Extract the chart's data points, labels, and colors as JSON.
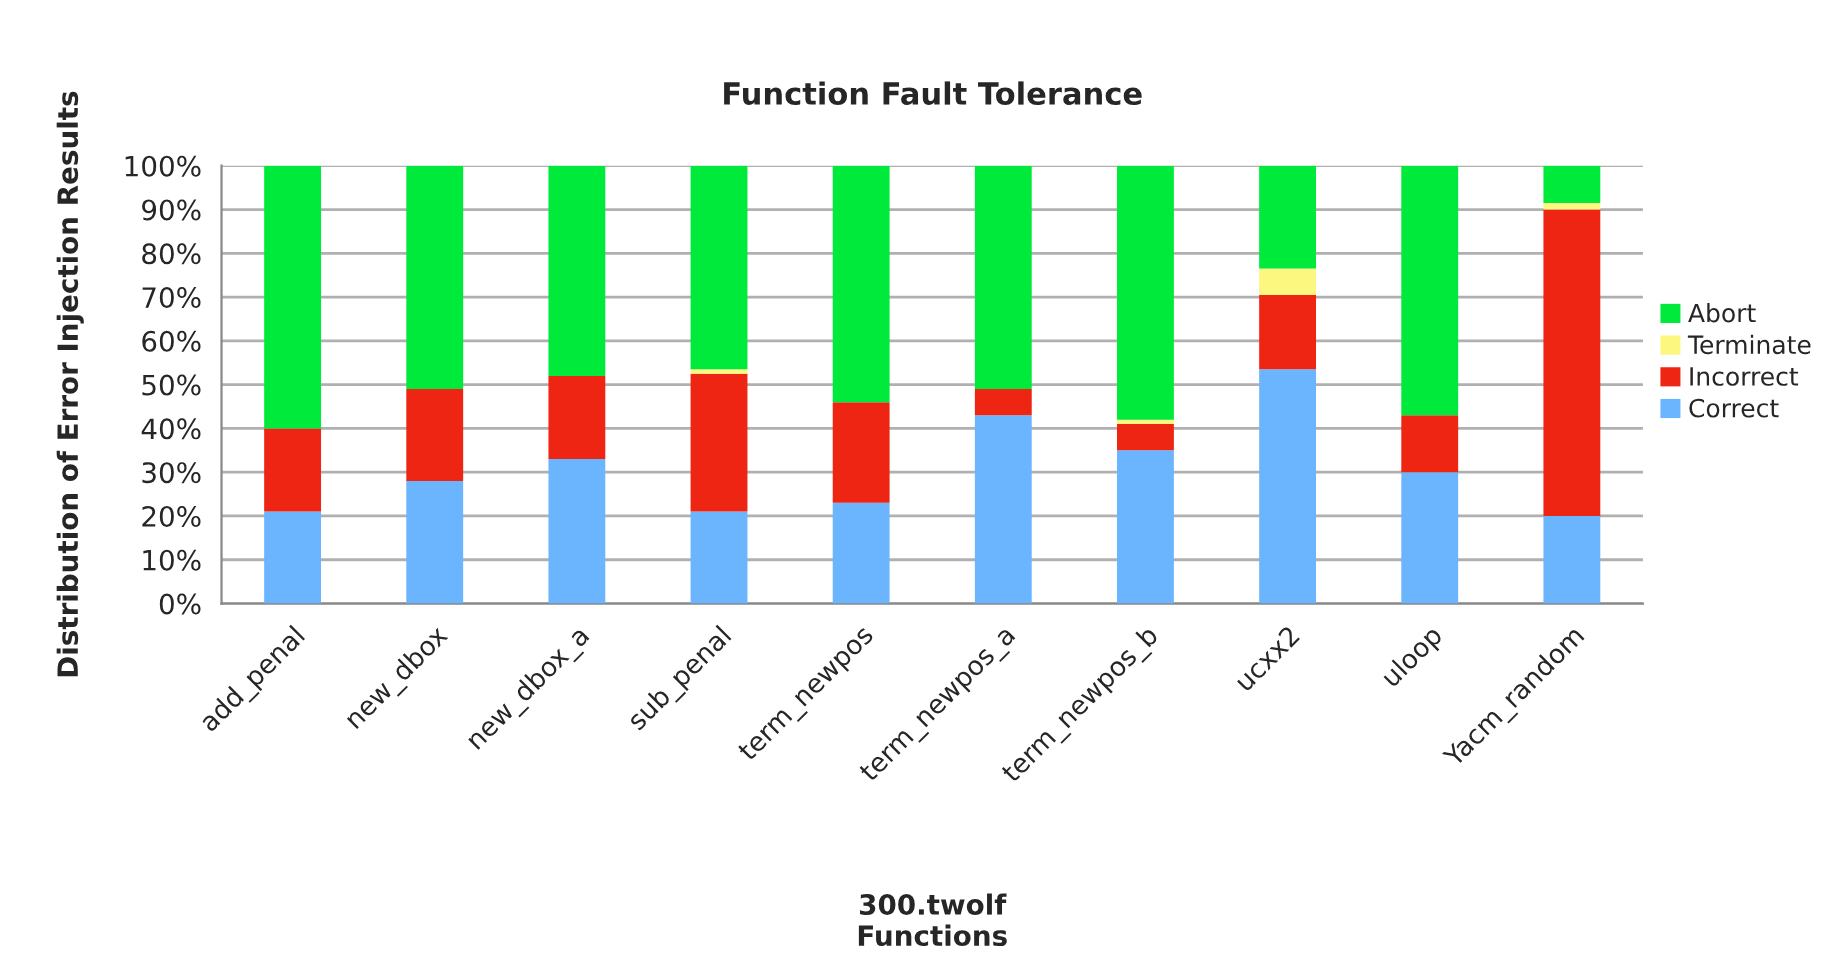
{
  "chart_data": {
    "type": "bar",
    "title": "Function Fault Tolerance",
    "xlabel": "300.twolf\nFunctions",
    "ylabel": "Distribution of Error Injection Results",
    "categories": [
      "add_penal",
      "new_dbox",
      "new_dbox_a",
      "sub_penal",
      "term_newpos",
      "term_newpos_a",
      "term_newpos_b",
      "ucxx2",
      "uloop",
      "Yacm_random"
    ],
    "stacked": true,
    "series": [
      {
        "name": "Correct",
        "color": "#6bb5ff",
        "values": [
          21,
          28,
          33,
          21,
          23,
          43,
          35,
          53.5,
          30,
          20
        ]
      },
      {
        "name": "Incorrect",
        "color": "#ee2512",
        "values": [
          19,
          21,
          19,
          31.5,
          23,
          6,
          6,
          17,
          13,
          70
        ]
      },
      {
        "name": "Terminate",
        "color": "#fbf77f",
        "values": [
          0,
          0,
          0,
          1,
          0,
          0,
          1,
          6,
          0,
          1.5
        ]
      },
      {
        "name": "Abort",
        "color": "#00ea3c",
        "values": [
          60,
          51,
          48,
          46.5,
          54,
          51,
          58,
          23.5,
          57,
          8.5
        ]
      }
    ],
    "ylim": [
      0,
      100
    ],
    "yticks": [
      {
        "value": 0,
        "label": "0%"
      },
      {
        "value": 10,
        "label": "10%"
      },
      {
        "value": 20,
        "label": "20%"
      },
      {
        "value": 30,
        "label": "30%"
      },
      {
        "value": 40,
        "label": "40%"
      },
      {
        "value": 50,
        "label": "50%"
      },
      {
        "value": 60,
        "label": "60%"
      },
      {
        "value": 70,
        "label": "70%"
      },
      {
        "value": 80,
        "label": "80%"
      },
      {
        "value": 90,
        "label": "90%"
      },
      {
        "value": 100,
        "label": "100%"
      }
    ],
    "grid": "y",
    "legend": "right"
  }
}
